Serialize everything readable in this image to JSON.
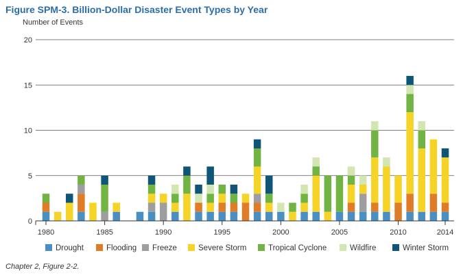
{
  "figure": {
    "title": "Figure SPM-3. Billion-Dollar Disaster Event Types by Year",
    "caption": "Chapter 2, Figure 2-2."
  },
  "chart_data": {
    "type": "bar",
    "stacked": true,
    "title": "Billion-Dollar Disaster Event Types by Year",
    "ylabel": "Number of Events",
    "xlabel": "",
    "ylim": [
      0,
      20
    ],
    "yticks": [
      0,
      5,
      10,
      15,
      20
    ],
    "xtick_labels": [
      "1980",
      "1985",
      "1990",
      "1995",
      "2000",
      "2005",
      "2010",
      "2014"
    ],
    "xtick_years": [
      1980,
      1985,
      1990,
      1995,
      2000,
      2005,
      2010,
      2014
    ],
    "legend_position": "bottom",
    "categories": [
      1980,
      1981,
      1982,
      1983,
      1984,
      1985,
      1986,
      1987,
      1988,
      1989,
      1990,
      1991,
      1992,
      1993,
      1994,
      1995,
      1996,
      1997,
      1998,
      1999,
      2000,
      2001,
      2002,
      2003,
      2004,
      2005,
      2006,
      2007,
      2008,
      2009,
      2010,
      2011,
      2012,
      2013,
      2014
    ],
    "series": [
      {
        "name": "Drought",
        "color": "#4a8fc4",
        "values": [
          1,
          0,
          0,
          1,
          0,
          0,
          1,
          0,
          1,
          1,
          0,
          1,
          0,
          1,
          1,
          1,
          1,
          0,
          1,
          1,
          1,
          0,
          1,
          1,
          0,
          1,
          1,
          1,
          1,
          1,
          0,
          1,
          1,
          1,
          1
        ]
      },
      {
        "name": "Flooding",
        "color": "#e07b28",
        "values": [
          1,
          0,
          0,
          2,
          0,
          0,
          0,
          0,
          0,
          0,
          0,
          0,
          0,
          1,
          0,
          1,
          1,
          2,
          1,
          0,
          0,
          0,
          0,
          0,
          0,
          0,
          1,
          0,
          1,
          0,
          2,
          2,
          0,
          2,
          1
        ]
      },
      {
        "name": "Freeze",
        "color": "#9e9e9e",
        "values": [
          0,
          0,
          0,
          1,
          0,
          1,
          0,
          0,
          0,
          1,
          2,
          0,
          0,
          0,
          0,
          0,
          0,
          0,
          1,
          0,
          0,
          0,
          0,
          0,
          0,
          0,
          0,
          2,
          0,
          0,
          0,
          0,
          0,
          0,
          0
        ]
      },
      {
        "name": "Severe Storm",
        "color": "#f5d327",
        "values": [
          0,
          1,
          2,
          0,
          2,
          0,
          1,
          0,
          0,
          1,
          1,
          1,
          3,
          0,
          1,
          1,
          0,
          1,
          3,
          1,
          0,
          1,
          1,
          4,
          1,
          0,
          2,
          1,
          5,
          5,
          3,
          9,
          7,
          6,
          5
        ]
      },
      {
        "name": "Tropical Cyclone",
        "color": "#72b443",
        "values": [
          1,
          0,
          0,
          1,
          0,
          3,
          0,
          0,
          0,
          1,
          0,
          1,
          2,
          0,
          1,
          1,
          1,
          0,
          2,
          1,
          0,
          1,
          1,
          1,
          4,
          4,
          1,
          0,
          3,
          0,
          0,
          2,
          2,
          0,
          0
        ]
      },
      {
        "name": "Wildfire",
        "color": "#d2e6b4",
        "values": [
          0,
          0,
          0,
          0,
          0,
          0,
          0,
          0,
          0,
          0,
          0,
          1,
          0,
          1,
          1,
          0,
          0,
          0,
          0,
          0,
          1,
          0,
          1,
          1,
          0,
          0,
          1,
          1,
          1,
          1,
          0,
          1,
          1,
          0,
          0
        ]
      },
      {
        "name": "Winter Storm",
        "color": "#0f5577",
        "values": [
          0,
          0,
          1,
          0,
          0,
          1,
          0,
          0,
          0,
          1,
          0,
          0,
          1,
          1,
          2,
          0,
          1,
          0,
          1,
          2,
          0,
          0,
          0,
          0,
          0,
          0,
          0,
          0,
          0,
          0,
          0,
          1,
          0,
          0,
          1
        ]
      }
    ]
  }
}
